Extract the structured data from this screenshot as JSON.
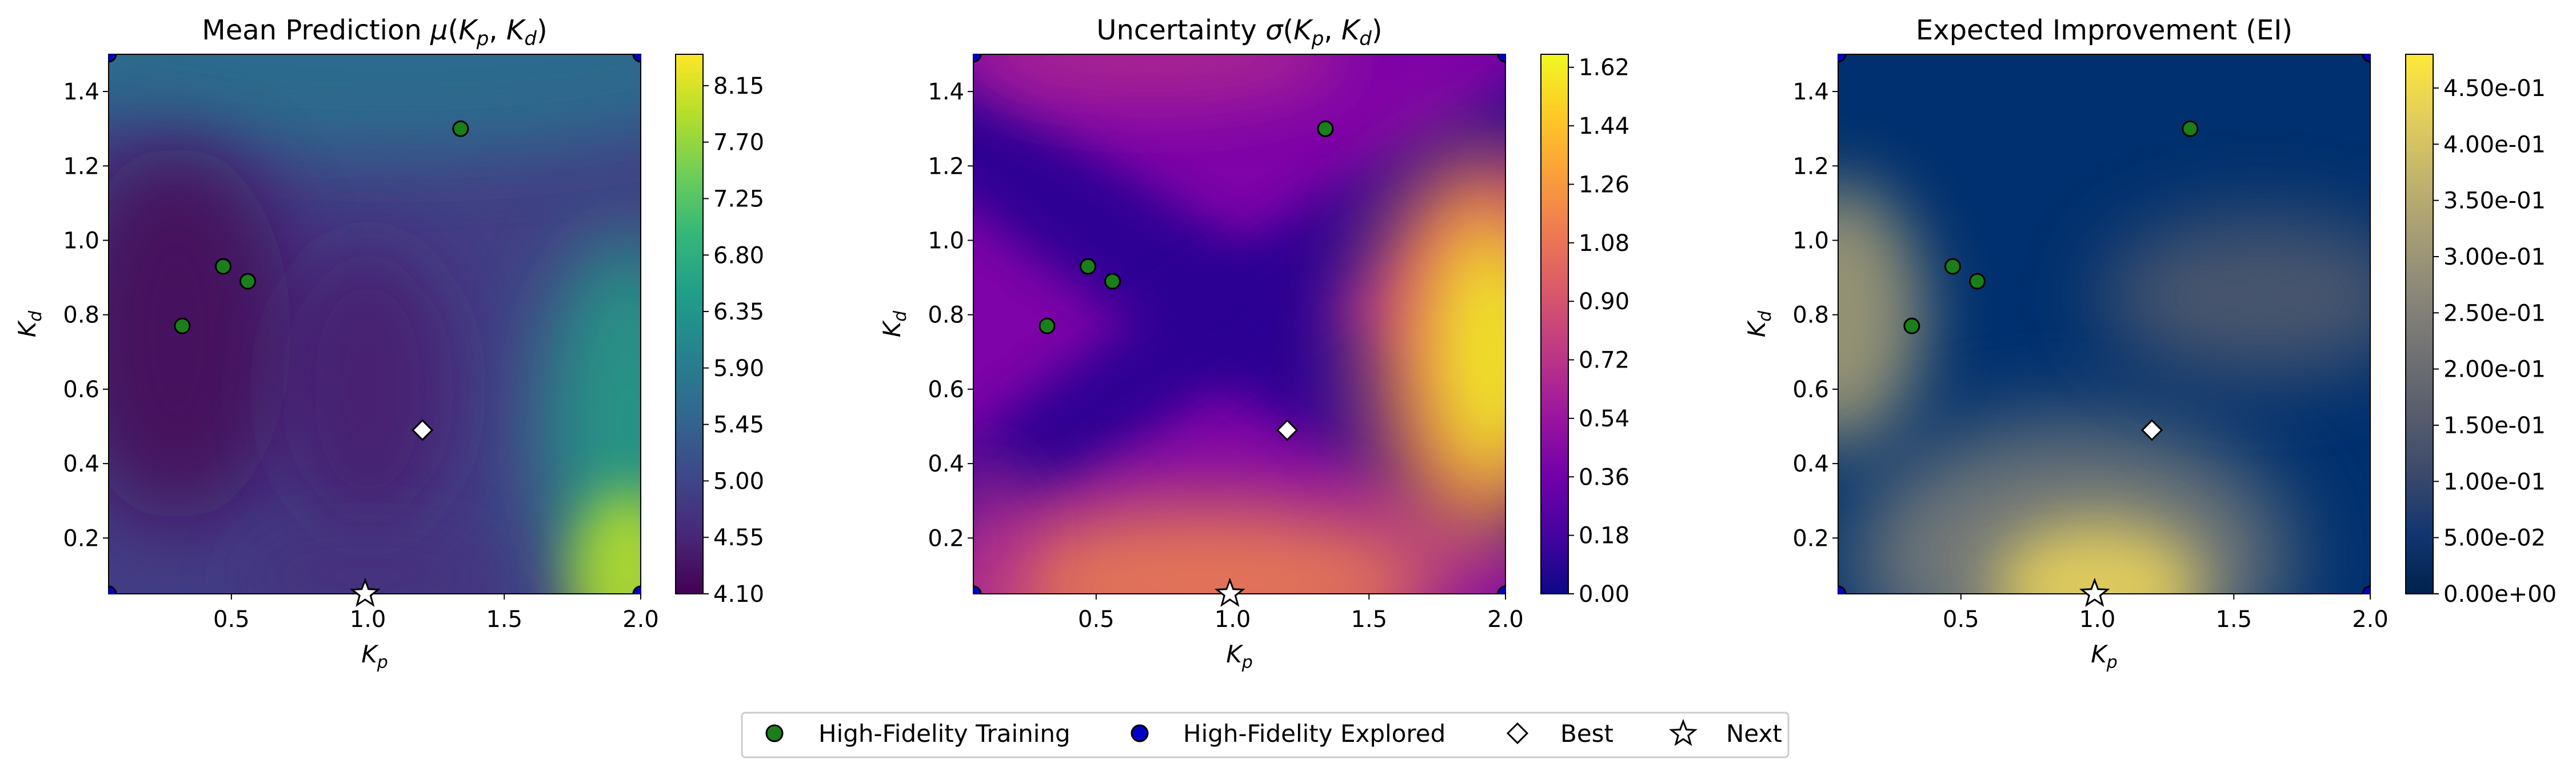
{
  "chart_data": [
    {
      "type": "heatmap",
      "title": "Mean Prediction μ(Kₚ, K_d)",
      "title_parts": {
        "prefix": "Mean Prediction ",
        "greek": "μ"
      },
      "xlabel": "K",
      "xlabel_sub": "p",
      "ylabel": "K",
      "ylabel_sub": "d",
      "xlim": [
        0.05,
        2.0
      ],
      "ylim": [
        0.05,
        1.5
      ],
      "xticks": [
        "0.5",
        "1.0",
        "1.5",
        "2.0"
      ],
      "yticks": [
        "0.2",
        "0.4",
        "0.6",
        "0.8",
        "1.0",
        "1.2",
        "1.4"
      ],
      "colormap": "viridis",
      "colorbar_range": [
        4.1,
        8.4
      ],
      "colorbar_ticks": [
        "4.10",
        "4.55",
        "5.00",
        "5.45",
        "5.90",
        "6.35",
        "6.80",
        "7.25",
        "7.70",
        "8.15"
      ]
    },
    {
      "type": "heatmap",
      "title": "Uncertainty σ(Kₚ, K_d)",
      "title_parts": {
        "prefix": "Uncertainty ",
        "greek": "σ"
      },
      "xlabel": "K",
      "xlabel_sub": "p",
      "ylabel": "K",
      "ylabel_sub": "d",
      "xlim": [
        0.05,
        2.0
      ],
      "ylim": [
        0.05,
        1.5
      ],
      "xticks": [
        "0.5",
        "1.0",
        "1.5",
        "2.0"
      ],
      "yticks": [
        "0.2",
        "0.4",
        "0.6",
        "0.8",
        "1.0",
        "1.2",
        "1.4"
      ],
      "colormap": "plasma",
      "colorbar_range": [
        0.0,
        1.66
      ],
      "colorbar_ticks": [
        "0.00",
        "0.18",
        "0.36",
        "0.54",
        "0.72",
        "0.90",
        "1.08",
        "1.26",
        "1.44",
        "1.62"
      ]
    },
    {
      "type": "heatmap",
      "title": "Expected Improvement (EI)",
      "xlabel": "K",
      "xlabel_sub": "p",
      "ylabel": "K",
      "ylabel_sub": "d",
      "xlim": [
        0.05,
        2.0
      ],
      "ylim": [
        0.05,
        1.5
      ],
      "xticks": [
        "0.5",
        "1.0",
        "1.5",
        "2.0"
      ],
      "yticks": [
        "0.2",
        "0.4",
        "0.6",
        "0.8",
        "1.0",
        "1.2",
        "1.4"
      ],
      "colormap": "cividis",
      "colorbar_range": [
        0.0,
        0.48
      ],
      "colorbar_ticks": [
        "0.00e+00",
        "5.00e-02",
        "1.00e-01",
        "1.50e-01",
        "2.00e-01",
        "2.50e-01",
        "3.00e-01",
        "3.50e-01",
        "4.00e-01",
        "4.50e-01"
      ]
    }
  ],
  "points": {
    "training": [
      [
        0.32,
        0.77
      ],
      [
        0.47,
        0.93
      ],
      [
        0.56,
        0.89
      ],
      [
        1.34,
        1.3
      ]
    ],
    "explored": [
      [
        0.05,
        1.5
      ],
      [
        2.0,
        1.5
      ],
      [
        0.05,
        0.05
      ],
      [
        2.0,
        0.05
      ]
    ],
    "best": [
      1.2,
      0.49
    ],
    "next": [
      0.99,
      0.05
    ]
  },
  "colors": {
    "training": "#1a7f1a",
    "explored": "#0000cc",
    "best": "#ffffff",
    "next": "#ffffff"
  },
  "legend": {
    "placement": "bottom-center",
    "entries": [
      {
        "label": "High-Fidelity Training",
        "marker": "circle-green"
      },
      {
        "label": "High-Fidelity Explored",
        "marker": "circle-blue"
      },
      {
        "label": "Best",
        "marker": "diamond"
      },
      {
        "label": "Next",
        "marker": "star"
      }
    ]
  }
}
